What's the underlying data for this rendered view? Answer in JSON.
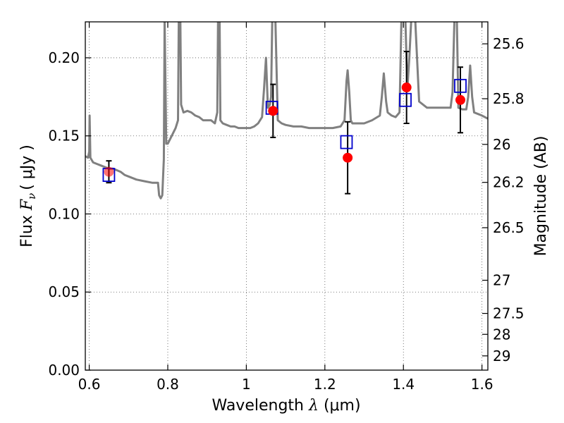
{
  "chart_data": {
    "type": "scatter",
    "title": "",
    "xlabel": "Wavelength",
    "xlabel_symbol": "λ",
    "xlabel_unit": "(μm)",
    "ylabel": "Flux",
    "ylabel_symbol": "F",
    "ylabel_subscript": "ν",
    "ylabel_unit": "( μJy )",
    "y2label": "Magnitude (AB)",
    "xlim": [
      0.59,
      1.615
    ],
    "ylim": [
      0.0,
      0.223
    ],
    "grid": true,
    "x_ticks": [
      {
        "value": 0.6,
        "label": "0.6"
      },
      {
        "value": 0.8,
        "label": "0.8"
      },
      {
        "value": 1.0,
        "label": "1"
      },
      {
        "value": 1.2,
        "label": "1.2"
      },
      {
        "value": 1.4,
        "label": "1.4"
      },
      {
        "value": 1.6,
        "label": "1.6"
      }
    ],
    "y_ticks": [
      {
        "value": 0.0,
        "label": "0.00"
      },
      {
        "value": 0.05,
        "label": "0.05"
      },
      {
        "value": 0.1,
        "label": "0.10"
      },
      {
        "value": 0.15,
        "label": "0.15"
      },
      {
        "value": 0.2,
        "label": "0.20"
      }
    ],
    "y2_ticks": [
      {
        "value": 25.6,
        "label": "25.6"
      },
      {
        "value": 25.8,
        "label": "25.8"
      },
      {
        "value": 26.0,
        "label": "26"
      },
      {
        "value": 26.2,
        "label": "26.2"
      },
      {
        "value": 26.5,
        "label": "26.5"
      },
      {
        "value": 27.0,
        "label": "27"
      },
      {
        "value": 27.5,
        "label": "27.5"
      },
      {
        "value": 28.0,
        "label": "28"
      },
      {
        "value": 29.0,
        "label": "29"
      }
    ],
    "model_spectrum": {
      "color": "#808080",
      "x": [
        0.59,
        0.597,
        0.6,
        0.601,
        0.603,
        0.61,
        0.62,
        0.63,
        0.64,
        0.65,
        0.66,
        0.67,
        0.68,
        0.69,
        0.7,
        0.72,
        0.74,
        0.76,
        0.775,
        0.778,
        0.782,
        0.786,
        0.79,
        0.792,
        0.796,
        0.8,
        0.81,
        0.82,
        0.826,
        0.828,
        0.83,
        0.832,
        0.834,
        0.84,
        0.85,
        0.86,
        0.87,
        0.88,
        0.89,
        0.9,
        0.91,
        0.92,
        0.926,
        0.928,
        0.93,
        0.932,
        0.934,
        0.94,
        0.95,
        0.96,
        0.97,
        0.98,
        0.99,
        1.0,
        1.01,
        1.02,
        1.03,
        1.04,
        1.045,
        1.05,
        1.055,
        1.06,
        1.063,
        1.066,
        1.07,
        1.074,
        1.08,
        1.09,
        1.1,
        1.12,
        1.14,
        1.16,
        1.18,
        1.2,
        1.22,
        1.24,
        1.25,
        1.255,
        1.258,
        1.262,
        1.266,
        1.27,
        1.28,
        1.3,
        1.32,
        1.34,
        1.345,
        1.35,
        1.356,
        1.36,
        1.37,
        1.38,
        1.39,
        1.395,
        1.4,
        1.405,
        1.41,
        1.415,
        1.42,
        1.43,
        1.44,
        1.46,
        1.48,
        1.5,
        1.52,
        1.525,
        1.53,
        1.536,
        1.54,
        1.55,
        1.56,
        1.565,
        1.57,
        1.575,
        1.58,
        1.59,
        1.6,
        1.615
      ],
      "y": [
        0.137,
        0.136,
        0.14,
        0.163,
        0.136,
        0.133,
        0.132,
        0.131,
        0.13,
        0.129,
        0.129,
        0.128,
        0.127,
        0.125,
        0.124,
        0.122,
        0.121,
        0.12,
        0.12,
        0.112,
        0.11,
        0.112,
        0.135,
        0.225,
        0.145,
        0.145,
        0.15,
        0.155,
        0.16,
        0.225,
        0.225,
        0.225,
        0.17,
        0.165,
        0.166,
        0.165,
        0.163,
        0.162,
        0.16,
        0.16,
        0.16,
        0.158,
        0.165,
        0.225,
        0.225,
        0.225,
        0.16,
        0.158,
        0.157,
        0.156,
        0.156,
        0.155,
        0.155,
        0.155,
        0.155,
        0.156,
        0.158,
        0.162,
        0.18,
        0.2,
        0.168,
        0.17,
        0.175,
        0.225,
        0.225,
        0.225,
        0.16,
        0.158,
        0.157,
        0.156,
        0.156,
        0.155,
        0.155,
        0.155,
        0.155,
        0.156,
        0.16,
        0.185,
        0.192,
        0.178,
        0.16,
        0.158,
        0.158,
        0.158,
        0.16,
        0.163,
        0.175,
        0.19,
        0.172,
        0.165,
        0.163,
        0.162,
        0.165,
        0.225,
        0.225,
        0.225,
        0.18,
        0.2,
        0.225,
        0.225,
        0.172,
        0.168,
        0.168,
        0.168,
        0.168,
        0.178,
        0.225,
        0.225,
        0.168,
        0.167,
        0.167,
        0.175,
        0.195,
        0.175,
        0.165,
        0.164,
        0.163,
        0.161
      ]
    },
    "series": [
      {
        "marker": "open-square",
        "color": "#0000cc",
        "x": [
          0.65,
          1.065,
          1.255,
          1.405,
          1.545
        ],
        "y": [
          0.125,
          0.168,
          0.146,
          0.173,
          0.182
        ]
      },
      {
        "marker": "filled-circle",
        "color": "#ff0000",
        "x": [
          0.65,
          1.068,
          1.258,
          1.408,
          1.545
        ],
        "y": [
          0.127,
          0.166,
          0.136,
          0.181,
          0.173
        ],
        "yerr": [
          0.007,
          0.017,
          0.023,
          0.023,
          0.021
        ]
      }
    ]
  }
}
